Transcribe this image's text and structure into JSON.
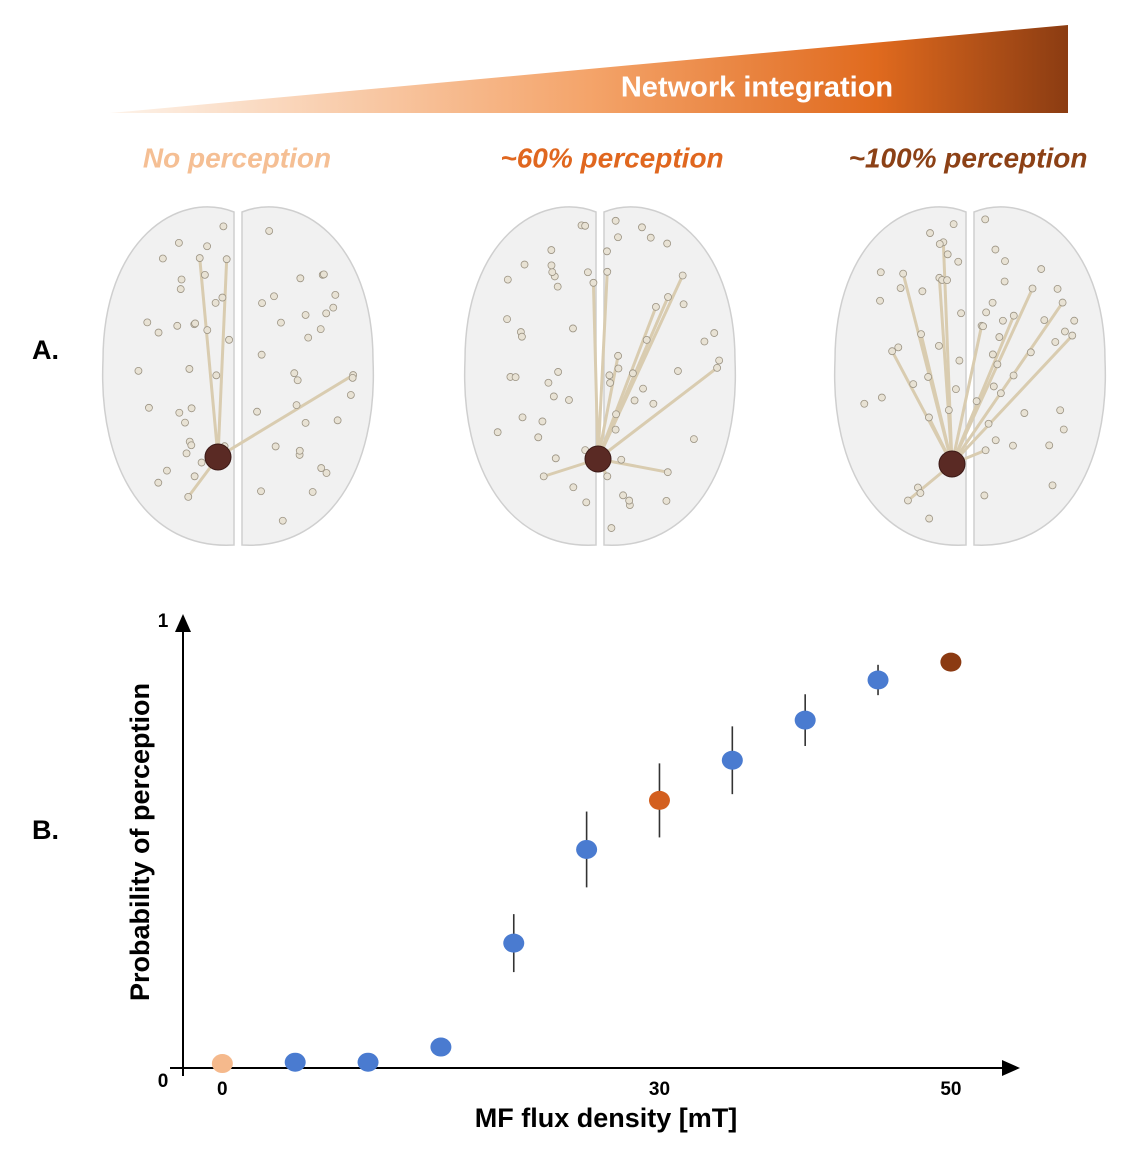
{
  "panel_a": {
    "label": "A.",
    "gradient_title": "Network integration",
    "conditions": [
      {
        "text": "No perception",
        "color": "#f5bf94"
      },
      {
        "text": "~60% perception",
        "color": "#e0671f"
      },
      {
        "text": "~100% perception",
        "color": "#8c4116"
      }
    ]
  },
  "chart_data": {
    "type": "scatter",
    "panel_label": "B.",
    "x_label": "MF flux density [mT]",
    "y_label": "Probability of perception",
    "x": [
      0,
      5,
      10,
      15,
      20,
      25,
      30,
      35,
      40,
      45,
      50
    ],
    "series": [
      {
        "values": [
          0.01,
          0.013,
          0.013,
          0.047,
          0.28,
          0.49,
          0.6,
          0.69,
          0.78,
          0.87,
          0.91
        ],
        "errors": [
          null,
          null,
          null,
          null,
          0.065,
          0.085,
          0.083,
          0.076,
          0.058,
          0.034,
          null
        ],
        "colors": [
          "#f5b98c",
          "#4a7bd0",
          "#4a7bd0",
          "#4a7bd0",
          "#4a7bd0",
          "#4a7bd0",
          "#d35f1f",
          "#4a7bd0",
          "#4a7bd0",
          "#4a7bd0",
          "#8b3a12"
        ]
      }
    ],
    "xlim": [
      -2.7,
      54.4
    ],
    "ylim": [
      0,
      1
    ],
    "xticks": [
      0,
      30,
      50
    ],
    "yticks": [
      0,
      1
    ]
  }
}
